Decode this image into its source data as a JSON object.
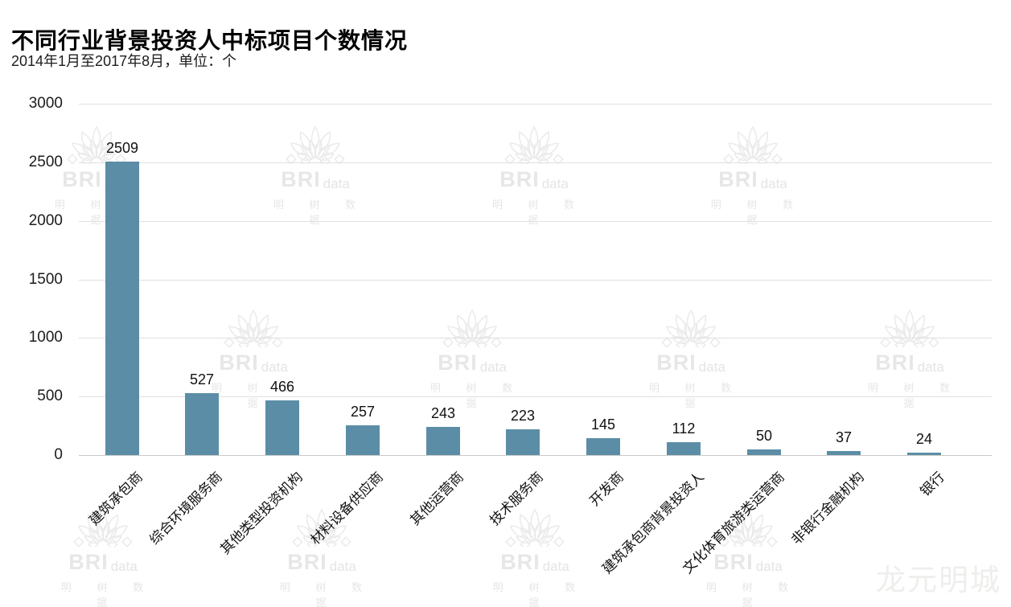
{
  "page": {
    "title": "不同行业背景投资人中标项目个数情况",
    "subtitle": "2014年1月至2017年8月，单位：个"
  },
  "watermark": {
    "brand_main": "BRI",
    "brand_sub": "data",
    "brand_cn": "明 树 数 据",
    "corner_text": "龙元明城"
  },
  "chart_data": {
    "type": "bar",
    "title": "不同行业背景投资人中标项目个数情况",
    "period": "2014年1月至2017年8月",
    "unit": "个",
    "categories": [
      "建筑承包商",
      "综合环境服务商",
      "其他类型投资机构",
      "材料设备供应商",
      "其他运营商",
      "技术服务商",
      "开发商",
      "建筑承包商背景投资人",
      "文化体育旅游类运营商",
      "非银行金融机构",
      "银行"
    ],
    "values": [
      2509,
      527,
      466,
      257,
      243,
      223,
      145,
      112,
      50,
      37,
      24
    ],
    "ylim": [
      0,
      3000
    ],
    "yticks": [
      0,
      500,
      1000,
      1500,
      2000,
      2500,
      3000
    ],
    "xlabel": "",
    "ylabel": "",
    "grid": true,
    "legend": false,
    "bar_color": "#5b8ea6",
    "value_label_color": "#111111",
    "grid_color": "#e0e0e0",
    "axis_line_color": "#c9c9c9"
  }
}
